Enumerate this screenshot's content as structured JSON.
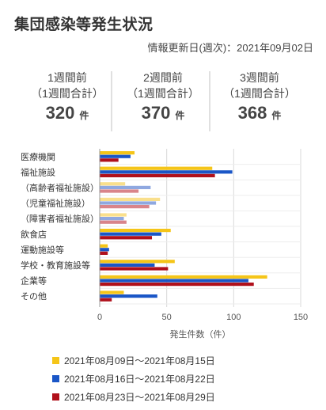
{
  "title": "集団感染等発生状況",
  "updated": "情報更新日(週次)：2021年09月02日",
  "stats": [
    {
      "label": "1週間前",
      "sub": "（1週間合計）",
      "value": "320",
      "unit": "件"
    },
    {
      "label": "2週間前",
      "sub": "（1週間合計）",
      "value": "370",
      "unit": "件"
    },
    {
      "label": "3週間前",
      "sub": "（1週間合計）",
      "value": "368",
      "unit": "件"
    }
  ],
  "chart_data": {
    "type": "bar",
    "orientation": "horizontal",
    "categories": [
      "医療機関",
      "福祉施設",
      "（高齢者福祉施設）",
      "（児童福祉施設）",
      "（障害者福祉施設）",
      "飲食店",
      "運動施設等",
      "学校・教育施設等",
      "企業等",
      "その他"
    ],
    "series": [
      {
        "name": "2021年08月09日～2021年08月15日",
        "color": "#f5c518",
        "light_color": "#f9df8c",
        "values": [
          26,
          84,
          19,
          45,
          20,
          53,
          6,
          56,
          125,
          18
        ]
      },
      {
        "name": "2021年08月16日～2021年08月22日",
        "color": "#1a56c7",
        "light_color": "#8fa8e0",
        "values": [
          23,
          99,
          38,
          42,
          18,
          46,
          7,
          41,
          111,
          43
        ]
      },
      {
        "name": "2021年08月23日～2021年08月29日",
        "color": "#b0101b",
        "light_color": "#d9848a",
        "values": [
          14,
          86,
          29,
          37,
          20,
          39,
          6,
          51,
          115,
          9
        ]
      }
    ],
    "light_categories": [
      2,
      3,
      4
    ],
    "xlabel": "発生件数（件）",
    "xlim": [
      0,
      150
    ],
    "xticks": [
      "0",
      "50",
      "100",
      "150"
    ],
    "grid": true,
    "legend": "bottom"
  }
}
